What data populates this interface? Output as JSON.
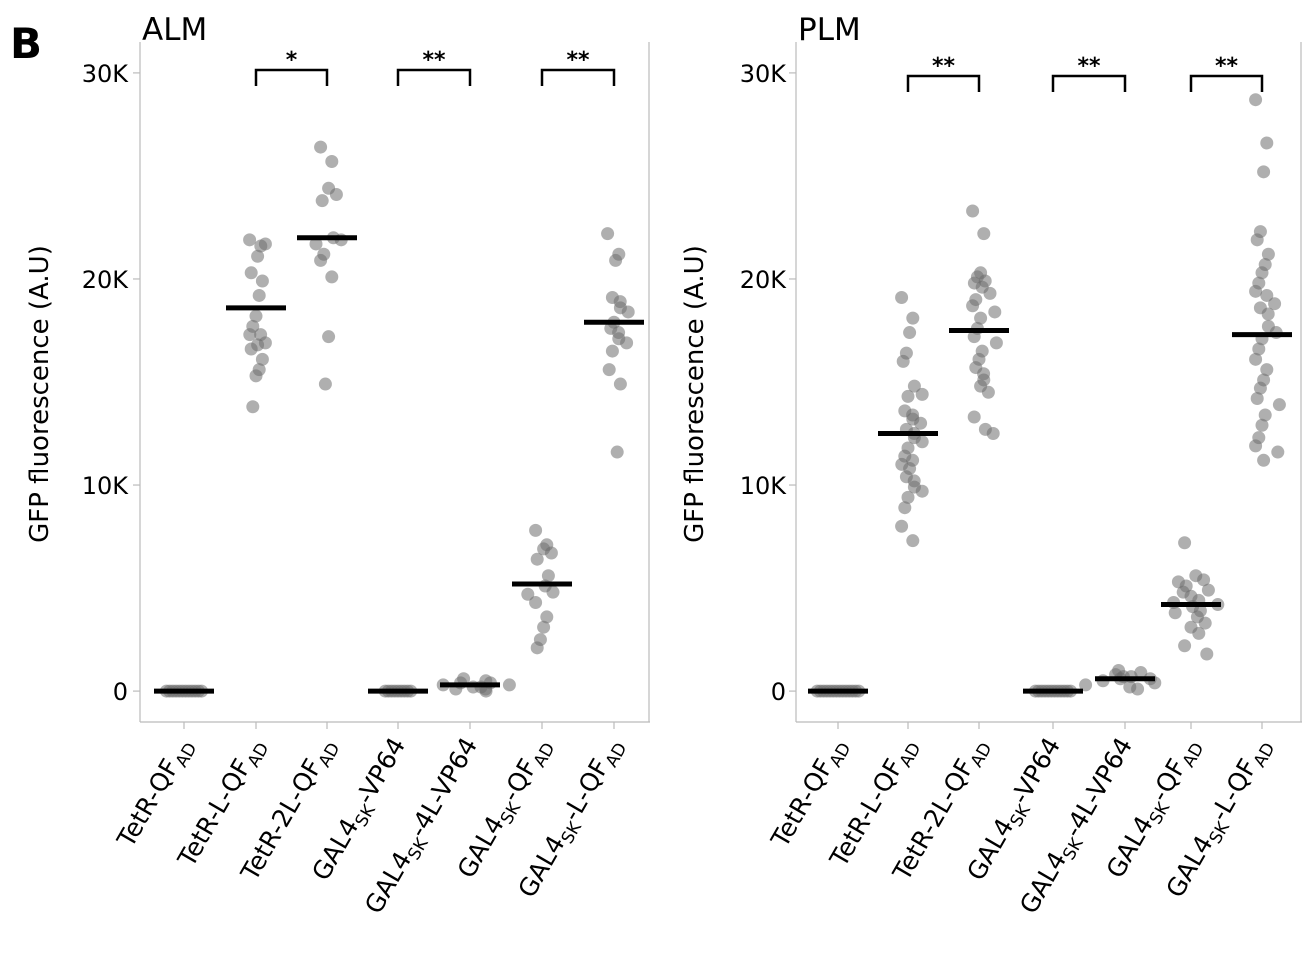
{
  "figure": {
    "panel_letter": "B"
  },
  "chart_data": [
    {
      "type": "scatter",
      "title": "ALM",
      "ylabel": "GFP fluorescence (A.U)",
      "ylim": [
        -1500,
        31500
      ],
      "yticks": [
        0,
        10000,
        20000,
        30000
      ],
      "ytick_labels": [
        "0",
        "10K",
        "20K",
        "30K"
      ],
      "grid": false,
      "categories": [
        {
          "base": "TetR-QF",
          "sub1": "",
          "mid": "",
          "sub2": "AD"
        },
        {
          "base": "TetR-L-QF",
          "sub1": "",
          "mid": "",
          "sub2": "AD"
        },
        {
          "base": "TetR-2L-QF",
          "sub1": "",
          "mid": "",
          "sub2": "AD"
        },
        {
          "base": "GAL4",
          "sub1": "SK",
          "mid": "-VP64",
          "sub2": ""
        },
        {
          "base": "GAL4",
          "sub1": "SK",
          "mid": "-4L-VP64",
          "sub2": ""
        },
        {
          "base": "GAL4",
          "sub1": "SK",
          "mid": "-QF",
          "sub2": "AD"
        },
        {
          "base": "GAL4",
          "sub1": "SK",
          "mid": "-L-QF",
          "sub2": "AD"
        }
      ],
      "means": [
        0,
        18600,
        22000,
        0,
        300,
        5200,
        17900
      ],
      "points": [
        [
          0,
          0,
          0,
          0,
          0,
          0,
          0,
          0,
          0,
          0,
          0,
          0
        ],
        [
          21900,
          21600,
          21100,
          21700,
          20300,
          19900,
          19200,
          18200,
          17700,
          17300,
          17300,
          16800,
          16900,
          16600,
          16100,
          15600,
          15300,
          13800
        ],
        [
          26400,
          25700,
          24400,
          24100,
          23800,
          22000,
          21900,
          21700,
          21200,
          20900,
          20100,
          17200,
          14900
        ],
        [
          0,
          0,
          0,
          0,
          0,
          0,
          0,
          0,
          0
        ],
        [
          600,
          500,
          400,
          400,
          300,
          300,
          200,
          200,
          100,
          100,
          0
        ],
        [
          7800,
          7100,
          6900,
          6700,
          6400,
          5600,
          5100,
          4800,
          4700,
          4300,
          3600,
          3100,
          2500,
          2100
        ],
        [
          22200,
          21200,
          20900,
          19100,
          18900,
          18600,
          18400,
          17900,
          17600,
          17400,
          17100,
          16900,
          16500,
          15600,
          14900,
          11600
        ]
      ],
      "significance": [
        {
          "from": 1,
          "to": 2,
          "label": "*"
        },
        {
          "from": 3,
          "to": 4,
          "label": "**"
        },
        {
          "from": 5,
          "to": 6,
          "label": "**"
        }
      ]
    },
    {
      "type": "scatter",
      "title": "PLM",
      "ylabel": "GFP fluorescence (A.U)",
      "ylim": [
        -1500,
        31500
      ],
      "yticks": [
        0,
        10000,
        20000,
        30000
      ],
      "ytick_labels": [
        "0",
        "10K",
        "20K",
        "30K"
      ],
      "grid": false,
      "categories": [
        {
          "base": "TetR-QF",
          "sub1": "",
          "mid": "",
          "sub2": "AD"
        },
        {
          "base": "TetR-L-QF",
          "sub1": "",
          "mid": "",
          "sub2": "AD"
        },
        {
          "base": "TetR-2L-QF",
          "sub1": "",
          "mid": "",
          "sub2": "AD"
        },
        {
          "base": "GAL4",
          "sub1": "SK",
          "mid": "-VP64",
          "sub2": ""
        },
        {
          "base": "GAL4",
          "sub1": "SK",
          "mid": "-4L-VP64",
          "sub2": ""
        },
        {
          "base": "GAL4",
          "sub1": "SK",
          "mid": "-QF",
          "sub2": "AD"
        },
        {
          "base": "GAL4",
          "sub1": "SK",
          "mid": "-L-QF",
          "sub2": "AD"
        }
      ],
      "means": [
        0,
        12500,
        17500,
        0,
        600,
        4200,
        17300
      ],
      "points": [
        [
          0,
          0,
          0,
          0,
          0,
          0,
          0,
          0,
          0,
          0,
          0,
          0,
          0,
          0
        ],
        [
          19100,
          18100,
          17400,
          16400,
          16000,
          14800,
          14400,
          14300,
          13600,
          13400,
          13200,
          13000,
          12700,
          12500,
          12300,
          12100,
          11800,
          11400,
          11200,
          11000,
          10800,
          10400,
          10200,
          9900,
          9700,
          9400,
          8900,
          8000,
          7300
        ],
        [
          23300,
          22200,
          20300,
          20100,
          19900,
          19800,
          19600,
          19300,
          19000,
          18700,
          18400,
          18100,
          17600,
          17200,
          16900,
          16500,
          16100,
          15700,
          15400,
          15100,
          14800,
          14500,
          13300,
          12700,
          12500
        ],
        [
          0,
          0,
          0,
          0,
          0,
          0,
          0,
          0,
          0,
          0,
          0,
          0
        ],
        [
          1000,
          900,
          800,
          700,
          700,
          600,
          600,
          500,
          400,
          300,
          200,
          100
        ],
        [
          7200,
          5600,
          5400,
          5300,
          5100,
          4900,
          4800,
          4600,
          4400,
          4300,
          4200,
          4100,
          3900,
          3800,
          3600,
          3300,
          3100,
          2800,
          2200,
          1800
        ],
        [
          28700,
          26600,
          25200,
          22300,
          21900,
          21200,
          20700,
          20300,
          19800,
          19400,
          19200,
          18800,
          18600,
          18300,
          17700,
          17400,
          17100,
          16600,
          16100,
          15600,
          15100,
          14700,
          14200,
          13900,
          13400,
          12900,
          12300,
          11900,
          11600,
          11200
        ]
      ],
      "significance": [
        {
          "from": 1,
          "to": 2,
          "label": "**"
        },
        {
          "from": 3,
          "to": 4,
          "label": "**"
        },
        {
          "from": 5,
          "to": 6,
          "label": "**"
        }
      ]
    }
  ]
}
